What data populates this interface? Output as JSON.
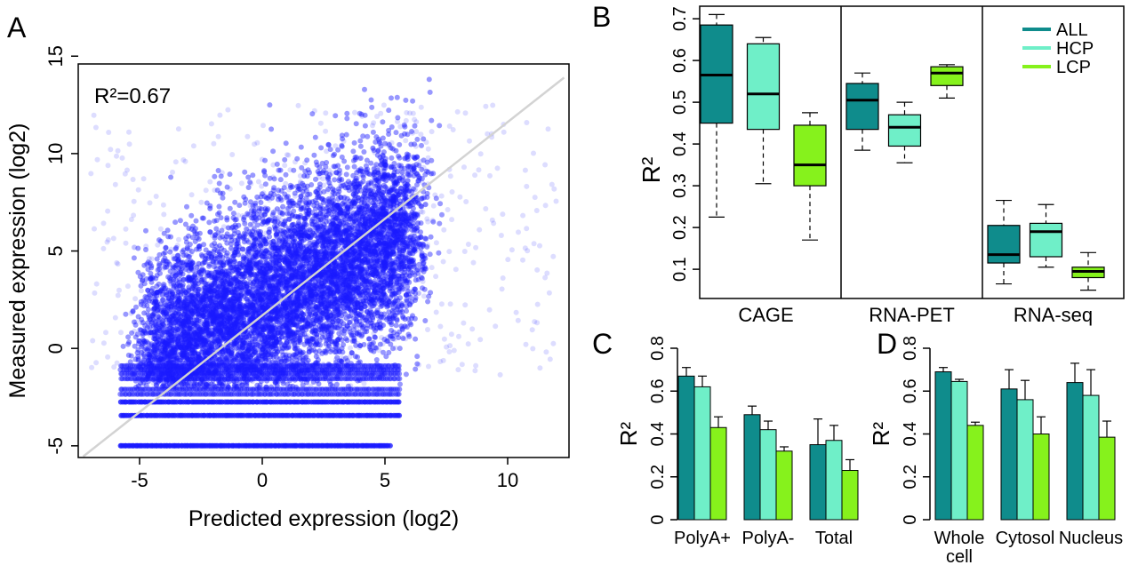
{
  "colors": {
    "ALL": "#0f8c8c",
    "HCP": "#6fefc8",
    "LCP": "#86f21c",
    "points": "#1a1aff",
    "fit_line": "#d3d3d3"
  },
  "chart_data": [
    {
      "panel": "A",
      "type": "scatter",
      "xlabel": "Predicted expression (log2)",
      "ylabel": "Measured expression (log2)",
      "xlim": [
        -7.5,
        12.5
      ],
      "ylim": [
        -5.6,
        14.6
      ],
      "xticks": [
        -5,
        0,
        5,
        10
      ],
      "yticks": [
        -5,
        0,
        5,
        10,
        15
      ],
      "annotation": "R²=0.67",
      "fit_line": [
        [
          -7.3,
          -5.55
        ],
        [
          12.3,
          13.9
        ]
      ],
      "floor_levels": [
        -5,
        -3.45,
        -2.75,
        -2.35,
        -2.1,
        -1.55,
        -1.3,
        -1.1,
        -0.9
      ],
      "point_color": "#1a1aff"
    },
    {
      "panel": "B",
      "type": "boxplot",
      "ylabel": "R²",
      "ylim": [
        0.03,
        0.73
      ],
      "yticks": [
        0.1,
        0.2,
        0.3,
        0.4,
        0.5,
        0.6,
        0.7
      ],
      "groups": [
        "CAGE",
        "RNA-PET",
        "RNA-seq"
      ],
      "legend": {
        "position": "top-right",
        "entries": [
          "ALL",
          "HCP",
          "LCP"
        ]
      },
      "boxes": [
        {
          "group": "CAGE",
          "series": "ALL",
          "min": 0.225,
          "q1": 0.45,
          "median": 0.565,
          "q3": 0.685,
          "max": 0.71
        },
        {
          "group": "CAGE",
          "series": "HCP",
          "min": 0.305,
          "q1": 0.435,
          "median": 0.52,
          "q3": 0.64,
          "max": 0.655
        },
        {
          "group": "CAGE",
          "series": "LCP",
          "min": 0.17,
          "q1": 0.3,
          "median": 0.35,
          "q3": 0.445,
          "max": 0.475
        },
        {
          "group": "RNA-PET",
          "series": "ALL",
          "min": 0.385,
          "q1": 0.435,
          "median": 0.505,
          "q3": 0.545,
          "max": 0.57
        },
        {
          "group": "RNA-PET",
          "series": "HCP",
          "min": 0.355,
          "q1": 0.395,
          "median": 0.44,
          "q3": 0.47,
          "max": 0.5
        },
        {
          "group": "RNA-PET",
          "series": "LCP",
          "min": 0.51,
          "q1": 0.54,
          "median": 0.57,
          "q3": 0.585,
          "max": 0.59
        },
        {
          "group": "RNA-seq",
          "series": "ALL",
          "min": 0.065,
          "q1": 0.115,
          "median": 0.135,
          "q3": 0.205,
          "max": 0.265
        },
        {
          "group": "RNA-seq",
          "series": "HCP",
          "min": 0.105,
          "q1": 0.13,
          "median": 0.19,
          "q3": 0.21,
          "max": 0.255
        },
        {
          "group": "RNA-seq",
          "series": "LCP",
          "min": 0.05,
          "q1": 0.08,
          "median": 0.095,
          "q3": 0.105,
          "max": 0.14
        }
      ]
    },
    {
      "panel": "C",
      "type": "bar",
      "ylabel": "R²",
      "ylim": [
        0,
        0.8
      ],
      "yticks": [
        0,
        0.2,
        0.4,
        0.6,
        0.8
      ],
      "categories": [
        "PolyA+",
        "PolyA-",
        "Total"
      ],
      "series": [
        {
          "name": "ALL",
          "values": [
            0.67,
            0.49,
            0.35
          ],
          "err_upper": [
            0.71,
            0.53,
            0.47
          ]
        },
        {
          "name": "HCP",
          "values": [
            0.62,
            0.42,
            0.37
          ],
          "err_upper": [
            0.67,
            0.46,
            0.44
          ]
        },
        {
          "name": "LCP",
          "values": [
            0.43,
            0.32,
            0.23
          ],
          "err_upper": [
            0.48,
            0.34,
            0.28
          ]
        }
      ]
    },
    {
      "panel": "D",
      "type": "bar",
      "ylabel": "R²",
      "ylim": [
        0,
        0.8
      ],
      "yticks": [
        0,
        0.2,
        0.4,
        0.6,
        0.8
      ],
      "categories": [
        "Whole\ncell",
        "Cytosol",
        "Nucleus"
      ],
      "series": [
        {
          "name": "ALL",
          "values": [
            0.69,
            0.61,
            0.64
          ],
          "err_upper": [
            0.71,
            0.7,
            0.73
          ]
        },
        {
          "name": "HCP",
          "values": [
            0.645,
            0.56,
            0.58
          ],
          "err_upper": [
            0.655,
            0.65,
            0.7
          ]
        },
        {
          "name": "LCP",
          "values": [
            0.44,
            0.4,
            0.385
          ],
          "err_upper": [
            0.455,
            0.48,
            0.46
          ]
        }
      ]
    }
  ],
  "panel_letters": [
    "A",
    "B",
    "C",
    "D"
  ]
}
